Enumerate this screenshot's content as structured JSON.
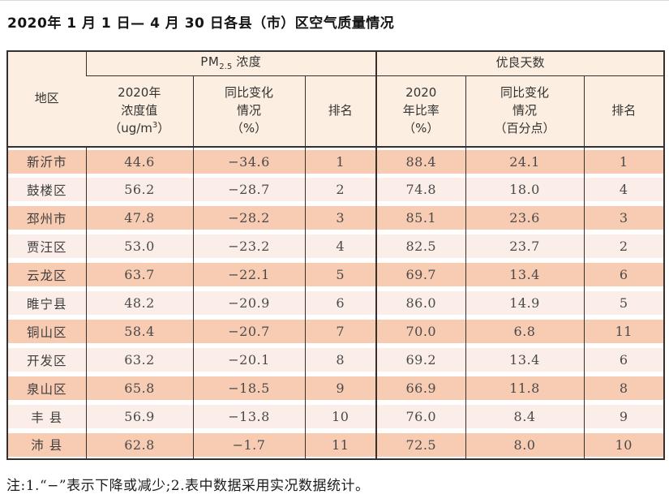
{
  "page": {
    "title": "2020年 1 月 1 日— 4 月 30 日各县（市）区空气质量情况",
    "note": "注:1.“−”表示下降或减少;2.表中数据采用实况数据统计。"
  },
  "colors": {
    "row_odd": "#f8cbb3",
    "row_even": "#fbeee8",
    "header_bg": "#fcefe1",
    "border": "#35302e"
  },
  "table": {
    "region_header": "地区",
    "groups": [
      {
        "prefix": "PM",
        "sub": "2.5",
        "suffix": "浓度"
      },
      {
        "label": "优良天数"
      }
    ],
    "sub_headers": [
      {
        "lines": [
          "2020年",
          "浓度值"
        ],
        "unit_open": "（ug/m",
        "unit_sup": "3",
        "unit_close": "）"
      },
      {
        "lines": [
          "同比变化",
          "情况",
          "（%）"
        ]
      },
      {
        "lines": [
          "排名"
        ]
      },
      {
        "lines": [
          "2020",
          "年比率",
          "（%）"
        ]
      },
      {
        "lines": [
          "同比变化",
          "情况",
          "（百分点）"
        ]
      },
      {
        "lines": [
          "排名"
        ]
      }
    ],
    "rows": [
      [
        "新沂市",
        "44.6",
        "−34.6",
        "1",
        "88.4",
        "24.1",
        "1"
      ],
      [
        "鼓楼区",
        "56.2",
        "−28.7",
        "2",
        "74.8",
        "18.0",
        "4"
      ],
      [
        "邳州市",
        "47.8",
        "−28.2",
        "3",
        "85.1",
        "23.6",
        "3"
      ],
      [
        "贾汪区",
        "53.0",
        "−23.2",
        "4",
        "82.5",
        "23.7",
        "2"
      ],
      [
        "云龙区",
        "63.7",
        "−22.1",
        "5",
        "69.7",
        "13.4",
        "6"
      ],
      [
        "睢宁县",
        "48.2",
        "−20.9",
        "6",
        "86.0",
        "14.9",
        "5"
      ],
      [
        "铜山区",
        "58.4",
        "−20.7",
        "7",
        "70.0",
        "6.8",
        "11"
      ],
      [
        "开发区",
        "63.2",
        "−20.1",
        "8",
        "69.2",
        "13.4",
        "6"
      ],
      [
        "泉山区",
        "65.8",
        "−18.5",
        "9",
        "66.9",
        "11.8",
        "8"
      ],
      [
        "丰 县",
        "56.9",
        "−13.8",
        "10",
        "76.0",
        "8.4",
        "9"
      ],
      [
        "沛 县",
        "62.8",
        "−1.7",
        "11",
        "72.5",
        "8.0",
        "10"
      ]
    ]
  }
}
